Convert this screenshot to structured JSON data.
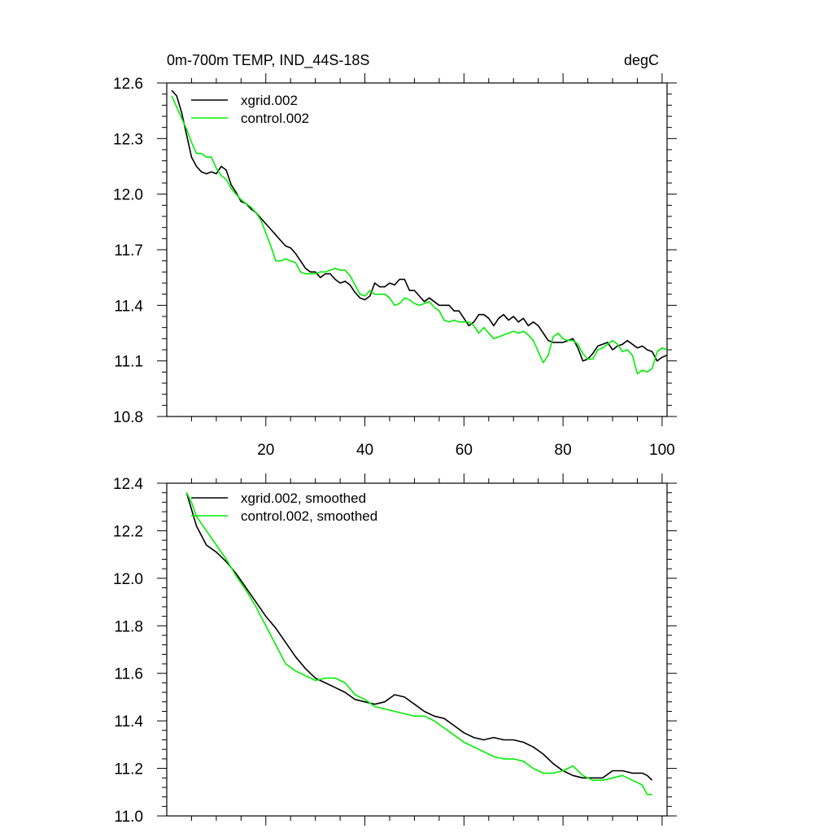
{
  "chart_data": [
    {
      "type": "line",
      "title_left": "0m-700m TEMP, IND_44S-18S",
      "title_right": "degC",
      "xlabel": "",
      "ylabel": "",
      "xlim": [
        0,
        101
      ],
      "ylim": [
        10.8,
        12.6
      ],
      "x_ticks": [
        20,
        40,
        60,
        80,
        100
      ],
      "x_tick_labels": [
        "20",
        "40",
        "60",
        "80",
        "100"
      ],
      "y_ticks": [
        10.8,
        11.1,
        11.4,
        11.7,
        12.0,
        12.3,
        12.6
      ],
      "y_tick_labels": [
        "10.8",
        "11.1",
        "11.4",
        "11.7",
        "12.0",
        "12.3",
        "12.6"
      ],
      "legend_position": "top-left",
      "series": [
        {
          "name": "xgrid.002",
          "color": "#000000",
          "x": [
            1,
            2,
            3,
            4,
            5,
            6,
            7,
            8,
            9,
            10,
            11,
            12,
            13,
            14,
            15,
            16,
            17,
            18,
            19,
            20,
            21,
            22,
            23,
            24,
            25,
            26,
            27,
            28,
            29,
            30,
            31,
            32,
            33,
            34,
            35,
            36,
            37,
            38,
            39,
            40,
            41,
            42,
            43,
            44,
            45,
            46,
            47,
            48,
            49,
            50,
            51,
            52,
            53,
            54,
            55,
            56,
            57,
            58,
            59,
            60,
            61,
            62,
            63,
            64,
            65,
            66,
            67,
            68,
            69,
            70,
            71,
            72,
            73,
            74,
            75,
            76,
            77,
            78,
            79,
            80,
            81,
            82,
            83,
            84,
            85,
            86,
            87,
            88,
            89,
            90,
            91,
            92,
            93,
            94,
            95,
            96,
            97,
            98,
            99,
            100,
            101
          ],
          "values": [
            12.56,
            12.53,
            12.44,
            12.32,
            12.2,
            12.15,
            12.12,
            12.11,
            12.12,
            12.11,
            12.15,
            12.13,
            12.05,
            12.01,
            11.96,
            11.95,
            11.92,
            11.9,
            11.87,
            11.84,
            11.81,
            11.78,
            11.75,
            11.72,
            11.71,
            11.68,
            11.64,
            11.6,
            11.58,
            11.58,
            11.55,
            11.57,
            11.57,
            11.54,
            11.52,
            11.53,
            11.51,
            11.47,
            11.44,
            11.43,
            11.45,
            11.52,
            11.5,
            11.5,
            11.52,
            11.51,
            11.54,
            11.54,
            11.48,
            11.48,
            11.45,
            11.42,
            11.44,
            11.42,
            11.4,
            11.4,
            11.4,
            11.37,
            11.37,
            11.33,
            11.29,
            11.31,
            11.35,
            11.35,
            11.33,
            11.29,
            11.33,
            11.35,
            11.32,
            11.34,
            11.31,
            11.33,
            11.29,
            11.31,
            11.29,
            11.25,
            11.21,
            11.2,
            11.2,
            11.2,
            11.21,
            11.22,
            11.17,
            11.1,
            11.11,
            11.14,
            11.18,
            11.19,
            11.2,
            11.16,
            11.18,
            11.19,
            11.21,
            11.19,
            11.17,
            11.18,
            11.16,
            11.15,
            11.1,
            11.12,
            11.13
          ]
        },
        {
          "name": "control.002",
          "color": "#00ee00",
          "x": [
            1,
            2,
            3,
            4,
            5,
            6,
            7,
            8,
            9,
            10,
            11,
            12,
            13,
            14,
            15,
            16,
            17,
            18,
            19,
            20,
            21,
            22,
            23,
            24,
            25,
            26,
            27,
            28,
            29,
            30,
            31,
            32,
            33,
            34,
            35,
            36,
            37,
            38,
            39,
            40,
            41,
            42,
            43,
            44,
            45,
            46,
            47,
            48,
            49,
            50,
            51,
            52,
            53,
            54,
            55,
            56,
            57,
            58,
            59,
            60,
            61,
            62,
            63,
            64,
            65,
            66,
            67,
            68,
            69,
            70,
            71,
            72,
            73,
            74,
            75,
            76,
            77,
            78,
            79,
            80,
            81,
            82,
            83,
            84,
            85,
            86,
            87,
            88,
            89,
            90,
            91,
            92,
            93,
            94,
            95,
            96,
            97,
            98,
            99,
            100,
            101
          ],
          "values": [
            12.53,
            12.47,
            12.41,
            12.35,
            12.28,
            12.22,
            12.22,
            12.2,
            12.2,
            12.14,
            12.1,
            12.08,
            12.03,
            12.0,
            11.97,
            11.95,
            11.93,
            11.9,
            11.86,
            11.79,
            11.72,
            11.64,
            11.64,
            11.65,
            11.64,
            11.63,
            11.58,
            11.57,
            11.57,
            11.57,
            11.58,
            11.58,
            11.59,
            11.6,
            11.59,
            11.59,
            11.56,
            11.51,
            11.46,
            11.45,
            11.48,
            11.46,
            11.46,
            11.46,
            11.44,
            11.4,
            11.41,
            11.44,
            11.43,
            11.41,
            11.4,
            11.41,
            11.42,
            11.39,
            11.37,
            11.32,
            11.31,
            11.32,
            11.31,
            11.31,
            11.31,
            11.29,
            11.25,
            11.28,
            11.25,
            11.22,
            11.23,
            11.24,
            11.25,
            11.26,
            11.25,
            11.26,
            11.24,
            11.21,
            11.15,
            11.09,
            11.13,
            11.23,
            11.25,
            11.22,
            11.21,
            11.21,
            11.19,
            11.14,
            11.11,
            11.11,
            11.16,
            11.17,
            11.19,
            11.21,
            11.19,
            11.15,
            11.16,
            11.13,
            11.03,
            11.05,
            11.04,
            11.06,
            11.15,
            11.17,
            11.16
          ]
        }
      ]
    },
    {
      "type": "line",
      "title_left": "",
      "title_right": "",
      "xlabel": "",
      "ylabel": "",
      "xlim": [
        0,
        101
      ],
      "ylim": [
        11.0,
        12.4
      ],
      "x_ticks": [
        20,
        40,
        60,
        80,
        100
      ],
      "x_tick_labels": [],
      "y_ticks": [
        11.0,
        11.2,
        11.4,
        11.6,
        11.8,
        12.0,
        12.2,
        12.4
      ],
      "y_tick_labels": [
        "11.0",
        "11.2",
        "11.4",
        "11.6",
        "11.8",
        "12.0",
        "12.2",
        "12.4"
      ],
      "legend_position": "top-left",
      "series": [
        {
          "name": "xgrid.002, smoothed",
          "color": "#000000",
          "x": [
            4,
            5,
            6,
            8,
            10,
            12,
            14,
            16,
            18,
            20,
            22,
            24,
            26,
            28,
            30,
            32,
            34,
            36,
            38,
            40,
            42,
            44,
            46,
            48,
            50,
            52,
            54,
            56,
            58,
            60,
            62,
            64,
            66,
            68,
            70,
            72,
            74,
            76,
            78,
            80,
            82,
            84,
            86,
            88,
            90,
            92,
            94,
            96,
            97,
            98
          ],
          "values": [
            12.36,
            12.29,
            12.22,
            12.14,
            12.11,
            12.07,
            12.02,
            11.96,
            11.9,
            11.84,
            11.79,
            11.73,
            11.67,
            11.62,
            11.58,
            11.56,
            11.54,
            11.52,
            11.49,
            11.48,
            11.47,
            11.48,
            11.51,
            11.5,
            11.47,
            11.44,
            11.42,
            11.41,
            11.38,
            11.35,
            11.33,
            11.32,
            11.33,
            11.32,
            11.32,
            11.31,
            11.29,
            11.26,
            11.22,
            11.19,
            11.17,
            11.16,
            11.16,
            11.16,
            11.19,
            11.19,
            11.18,
            11.18,
            11.17,
            11.15
          ]
        },
        {
          "name": "control.002, smoothed",
          "color": "#00ee00",
          "x": [
            4,
            5,
            6,
            8,
            10,
            12,
            14,
            16,
            18,
            20,
            22,
            24,
            26,
            28,
            30,
            32,
            34,
            36,
            38,
            40,
            42,
            44,
            46,
            48,
            50,
            52,
            54,
            56,
            58,
            60,
            62,
            64,
            66,
            68,
            70,
            72,
            74,
            76,
            78,
            80,
            82,
            84,
            86,
            88,
            90,
            92,
            94,
            96,
            97,
            98
          ],
          "values": [
            12.36,
            12.32,
            12.26,
            12.2,
            12.14,
            12.08,
            12.01,
            11.95,
            11.88,
            11.8,
            11.72,
            11.64,
            11.61,
            11.59,
            11.57,
            11.58,
            11.58,
            11.56,
            11.51,
            11.49,
            11.46,
            11.45,
            11.44,
            11.43,
            11.42,
            11.42,
            11.4,
            11.37,
            11.34,
            11.31,
            11.29,
            11.27,
            11.25,
            11.24,
            11.24,
            11.23,
            11.2,
            11.18,
            11.18,
            11.19,
            11.21,
            11.17,
            11.15,
            11.15,
            11.16,
            11.17,
            11.15,
            11.13,
            11.09,
            11.09
          ]
        }
      ]
    }
  ]
}
